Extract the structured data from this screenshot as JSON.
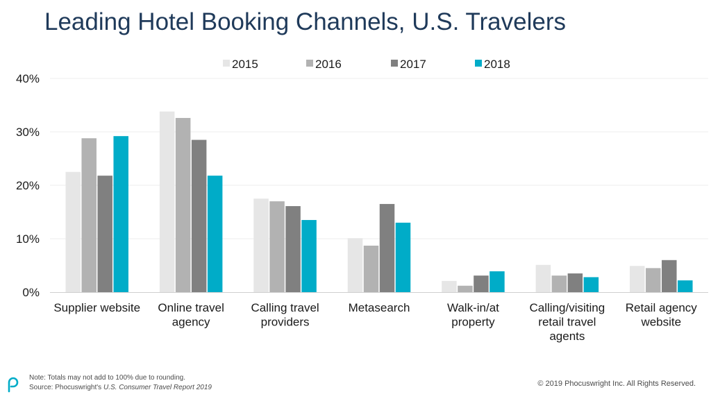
{
  "title": "Leading Hotel Booking Channels, U.S. Travelers",
  "footnote": {
    "note": "Note: Totals may not add to 100% due to rounding.",
    "source_prefix": "Source: Phocuswright's ",
    "source_title": "U.S. Consumer Travel Report 2019"
  },
  "copyright": "© 2019 Phocuswright Inc. All Rights Reserved.",
  "colors": {
    "2015": "#e6e6e6",
    "2016": "#b2b2b2",
    "2017": "#808080",
    "2018": "#00acc8",
    "title": "#1f3a5a",
    "logo": "#00acc8"
  },
  "chart_data": {
    "type": "bar",
    "title": "Leading Hotel Booking Channels, U.S. Travelers",
    "xlabel": "",
    "ylabel": "",
    "ylim": [
      0,
      40
    ],
    "yticks": [
      "0%",
      "10%",
      "20%",
      "30%",
      "40%"
    ],
    "grid": true,
    "legend_position": "top",
    "categories": [
      [
        "Supplier website"
      ],
      [
        "Online travel",
        "agency"
      ],
      [
        "Calling travel",
        "providers"
      ],
      [
        "Metasearch"
      ],
      [
        "Walk-in/at",
        "property"
      ],
      [
        "Calling/visiting",
        "retail travel",
        "agents"
      ],
      [
        "Retail agency",
        "website"
      ]
    ],
    "series": [
      {
        "name": "2015",
        "color": "#e6e6e6",
        "values": [
          22.5,
          33.8,
          17.5,
          10.1,
          2.1,
          5.1,
          4.9
        ]
      },
      {
        "name": "2016",
        "color": "#b2b2b2",
        "values": [
          28.8,
          32.6,
          17.0,
          8.7,
          1.2,
          3.1,
          4.5
        ]
      },
      {
        "name": "2017",
        "color": "#808080",
        "values": [
          21.8,
          28.5,
          16.1,
          16.5,
          3.1,
          3.5,
          6.0
        ]
      },
      {
        "name": "2018",
        "color": "#00acc8",
        "values": [
          29.2,
          21.8,
          13.5,
          13.0,
          3.9,
          2.8,
          2.2
        ]
      }
    ]
  }
}
